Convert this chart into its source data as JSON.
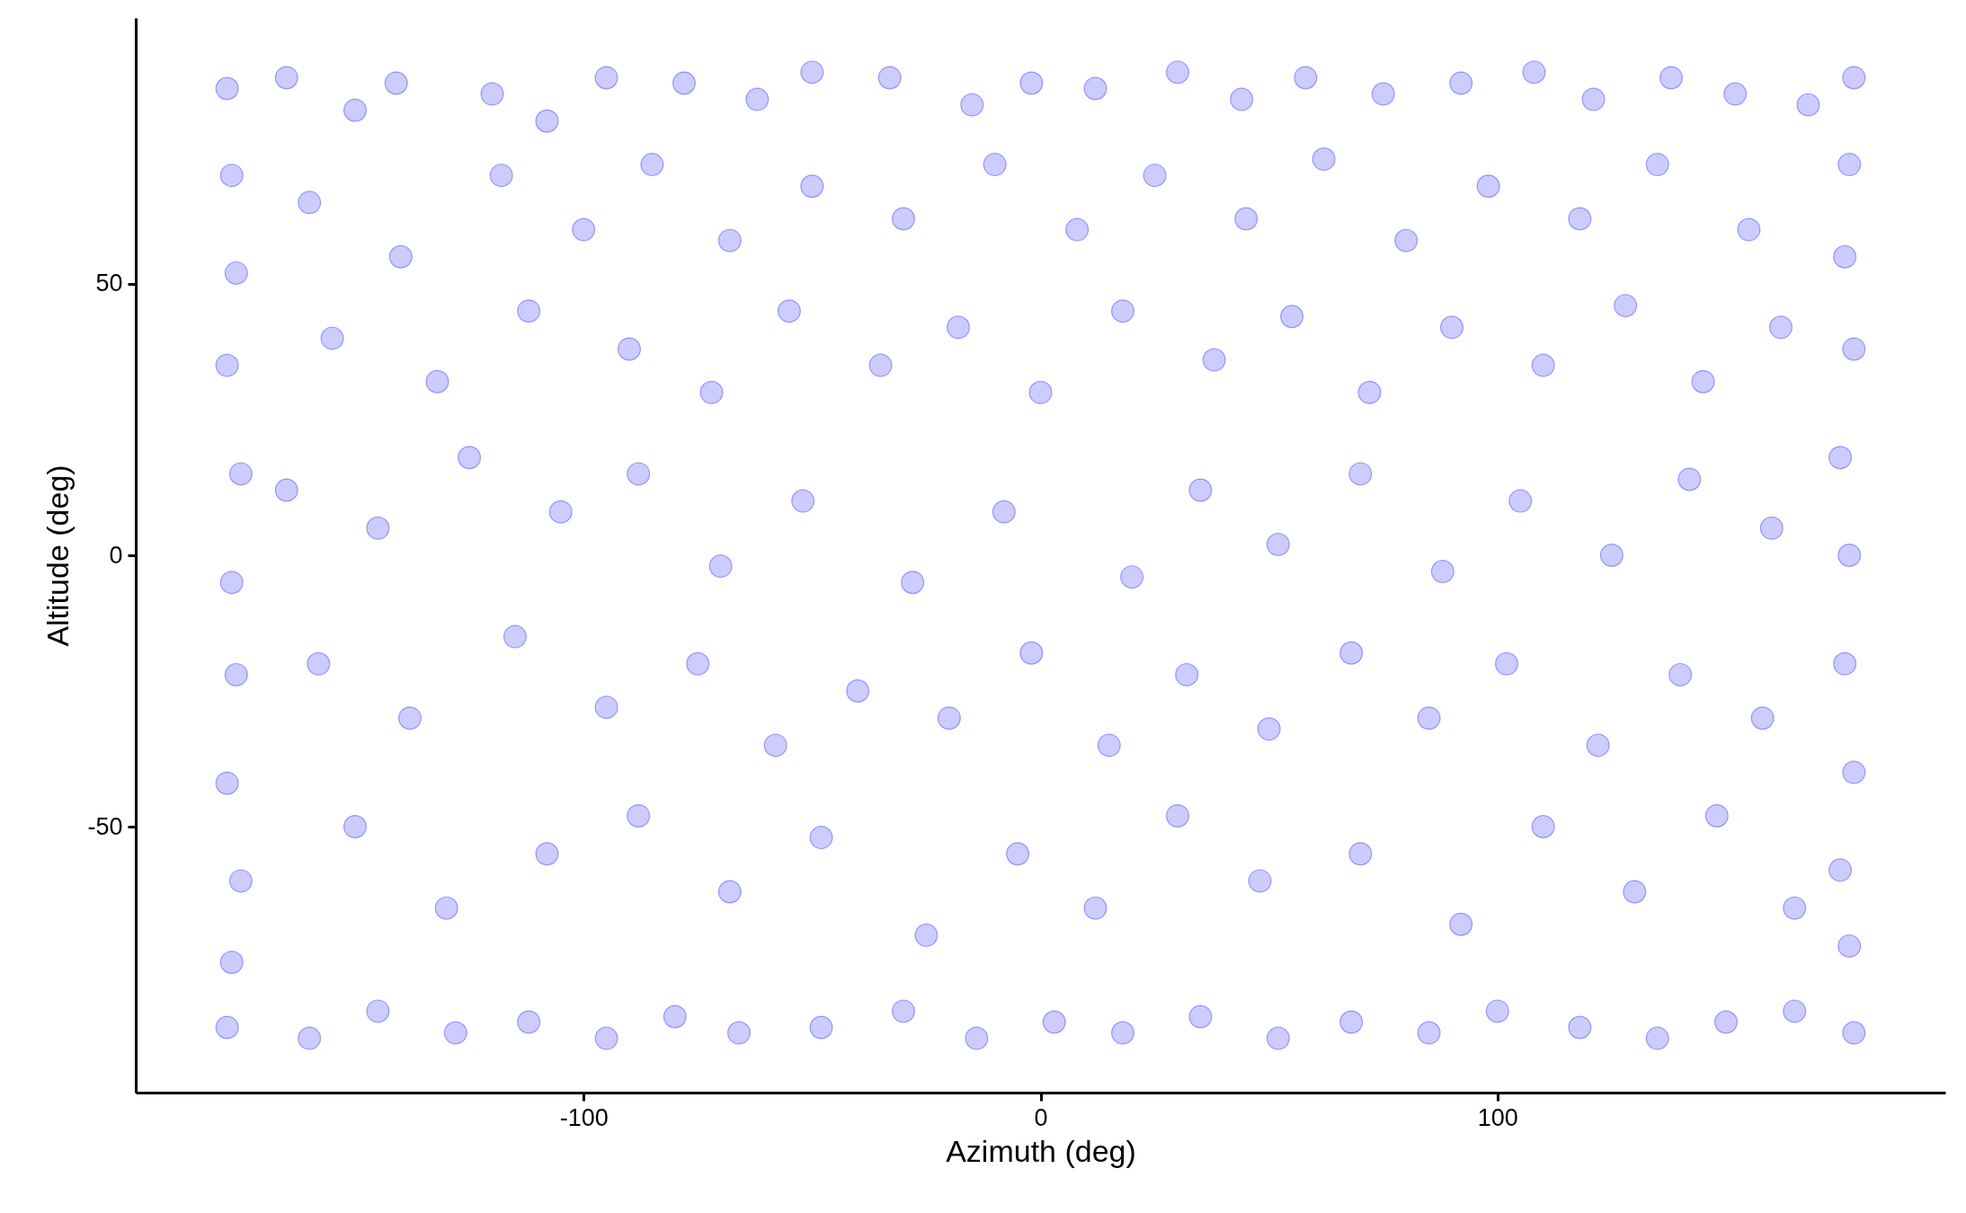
{
  "chart_data": {
    "type": "scatter",
    "xlabel": "Azimuth (deg)",
    "ylabel": "Altitude (deg)",
    "xlim": [
      -198,
      198
    ],
    "ylim": [
      -99,
      99
    ],
    "xticks": [
      -100,
      0,
      100
    ],
    "yticks": [
      -50,
      0,
      50
    ],
    "grid": false,
    "marker": "circle",
    "series": [
      {
        "color": "#0000ff",
        "x": [
          -178,
          -165,
          -150,
          -141,
          -120,
          -108,
          -95,
          -78,
          -62,
          -50,
          -33,
          -15,
          -2,
          12,
          30,
          44,
          58,
          75,
          92,
          108,
          121,
          138,
          152,
          168,
          178,
          -178,
          -160,
          -145,
          -128,
          -112,
          -95,
          -80,
          -66,
          -48,
          -30,
          -14,
          3,
          18,
          35,
          52,
          68,
          85,
          100,
          118,
          135,
          150,
          165,
          178,
          -177,
          -176,
          -178,
          -175,
          -177,
          -176,
          -178,
          -175,
          -177,
          177,
          176,
          178,
          175,
          177,
          176,
          178,
          175,
          177,
          -160,
          -140,
          -118,
          -100,
          -85,
          -68,
          -50,
          -30,
          -10,
          8,
          25,
          45,
          62,
          80,
          98,
          118,
          135,
          155,
          -155,
          -132,
          -112,
          -90,
          -72,
          -55,
          -35,
          -18,
          0,
          18,
          38,
          55,
          72,
          90,
          110,
          128,
          145,
          162,
          -165,
          -145,
          -125,
          -105,
          -88,
          -70,
          -52,
          -28,
          -8,
          20,
          35,
          52,
          70,
          88,
          105,
          125,
          142,
          160,
          -158,
          -138,
          -115,
          -95,
          -75,
          -58,
          -40,
          -20,
          -2,
          15,
          32,
          50,
          68,
          85,
          102,
          122,
          140,
          158,
          -150,
          -130,
          -108,
          -88,
          -68,
          -48,
          -25,
          -5,
          12,
          30,
          48,
          70,
          92,
          110,
          130,
          148,
          165
        ],
        "values": [
          86,
          88,
          82,
          87,
          85,
          80,
          88,
          87,
          84,
          89,
          88,
          83,
          87,
          86,
          89,
          84,
          88,
          85,
          87,
          89,
          84,
          88,
          85,
          83,
          88,
          -87,
          -89,
          -84,
          -88,
          -86,
          -89,
          -85,
          -88,
          -87,
          -84,
          -89,
          -86,
          -88,
          -85,
          -89,
          -86,
          -88,
          -84,
          -87,
          -89,
          -86,
          -84,
          -88,
          70,
          52,
          35,
          15,
          -5,
          -22,
          -42,
          -60,
          -75,
          72,
          55,
          38,
          18,
          0,
          -20,
          -40,
          -58,
          -72,
          65,
          55,
          70,
          60,
          72,
          58,
          68,
          62,
          72,
          60,
          70,
          62,
          73,
          58,
          68,
          62,
          72,
          60,
          40,
          32,
          45,
          38,
          30,
          45,
          35,
          42,
          30,
          45,
          36,
          44,
          30,
          42,
          35,
          46,
          32,
          42,
          12,
          5,
          18,
          8,
          15,
          -2,
          10,
          -5,
          8,
          -4,
          12,
          2,
          15,
          -3,
          10,
          0,
          14,
          5,
          -20,
          -30,
          -15,
          -28,
          -20,
          -35,
          -25,
          -30,
          -18,
          -35,
          -22,
          -32,
          -18,
          -30,
          -20,
          -35,
          -22,
          -30,
          -50,
          -65,
          -55,
          -48,
          -62,
          -52,
          -70,
          -55,
          -65,
          -48,
          -60,
          -55,
          -68,
          -50,
          -62,
          -48,
          -65
        ]
      }
    ]
  }
}
